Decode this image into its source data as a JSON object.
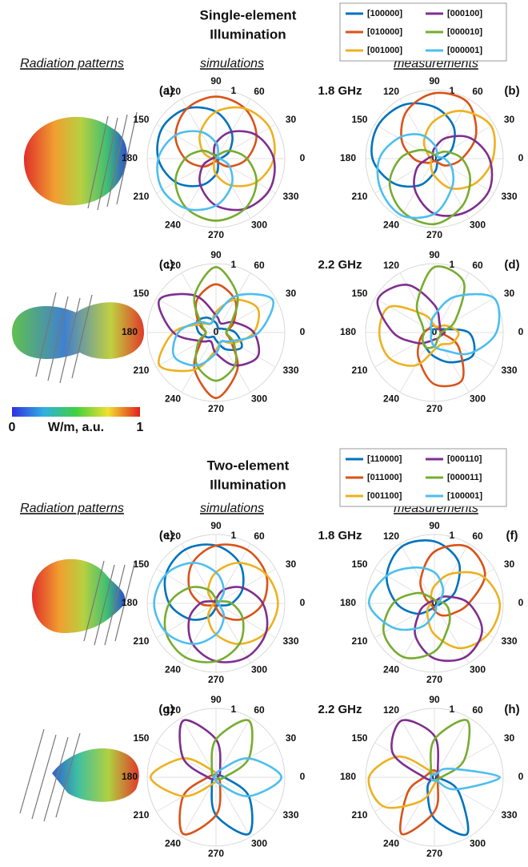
{
  "sections": [
    {
      "title": [
        "Single-element",
        "Illumination"
      ],
      "headings": [
        "Radiation patterns",
        "simulations",
        "measurements"
      ]
    },
    {
      "title": [
        "Two-element",
        "Illumination"
      ],
      "headings": [
        "Radiation patterns",
        "simulations",
        "measurements"
      ]
    }
  ],
  "colorbar": {
    "label": "W/m, a.u.",
    "ticks": [
      0,
      1
    ]
  },
  "chart_data": [
    {
      "type": "polar",
      "panel": "(a)",
      "frequency": "1.8 GHz",
      "theta": [
        0,
        30,
        60,
        90,
        120,
        150,
        180,
        210,
        240,
        270,
        300,
        330
      ],
      "rlim": [
        0,
        1
      ],
      "rticks": [
        0,
        1
      ],
      "series": [
        {
          "name": "[100000]",
          "color": "#0072bd",
          "values": [
            0.06,
            0.23,
            0.45,
            0.68,
            0.84,
            0.9,
            0.84,
            0.68,
            0.45,
            0.23,
            0.06,
            0.02
          ]
        },
        {
          "name": "[010000]",
          "color": "#d95319",
          "values": [
            0.45,
            0.68,
            0.84,
            0.9,
            0.84,
            0.68,
            0.45,
            0.23,
            0.06,
            0.02,
            0.06,
            0.23
          ]
        },
        {
          "name": "[001000]",
          "color": "#edb120",
          "values": [
            0.84,
            0.9,
            0.84,
            0.68,
            0.45,
            0.23,
            0.06,
            0.02,
            0.06,
            0.23,
            0.45,
            0.68
          ]
        },
        {
          "name": "[000100]",
          "color": "#7e2f8e",
          "values": [
            0.84,
            0.68,
            0.45,
            0.23,
            0.06,
            0.02,
            0.06,
            0.23,
            0.45,
            0.68,
            0.84,
            0.9
          ]
        },
        {
          "name": "[000010]",
          "color": "#77ac30",
          "values": [
            0.45,
            0.23,
            0.06,
            0.02,
            0.06,
            0.23,
            0.45,
            0.68,
            0.84,
            0.9,
            0.84,
            0.68
          ]
        },
        {
          "name": "[000001]",
          "color": "#4dbeee",
          "values": [
            0.06,
            0.02,
            0.06,
            0.23,
            0.45,
            0.68,
            0.84,
            0.9,
            0.84,
            0.68,
            0.45,
            0.23
          ]
        }
      ]
    },
    {
      "type": "polar",
      "panel": "(b)",
      "theta": [
        0,
        30,
        60,
        90,
        120,
        150,
        180,
        210,
        240,
        270,
        300,
        330
      ],
      "rlim": [
        0,
        1
      ],
      "rticks": [
        0,
        1
      ],
      "series": [
        {
          "name": "[100000]",
          "color": "#0072bd",
          "values": [
            0.1,
            0.3,
            0.55,
            0.75,
            0.9,
            0.95,
            0.9,
            0.7,
            0.45,
            0.2,
            0.08,
            0.05
          ]
        },
        {
          "name": "[010000]",
          "color": "#d95319",
          "values": [
            0.4,
            0.7,
            0.95,
            0.95,
            0.8,
            0.55,
            0.3,
            0.12,
            0.05,
            0.03,
            0.05,
            0.2
          ]
        },
        {
          "name": "[001000]",
          "color": "#edb120",
          "values": [
            0.85,
            0.95,
            0.8,
            0.55,
            0.3,
            0.1,
            0.05,
            0.05,
            0.1,
            0.25,
            0.5,
            0.7
          ]
        },
        {
          "name": "[000100]",
          "color": "#7e2f8e",
          "values": [
            0.8,
            0.6,
            0.35,
            0.15,
            0.05,
            0.05,
            0.1,
            0.3,
            0.55,
            0.8,
            0.9,
            0.92
          ]
        },
        {
          "name": "[000010]",
          "color": "#77ac30",
          "values": [
            0.4,
            0.2,
            0.08,
            0.05,
            0.1,
            0.25,
            0.5,
            0.75,
            0.9,
            0.95,
            0.8,
            0.6
          ]
        },
        {
          "name": "[000001]",
          "color": "#4dbeee",
          "values": [
            0.15,
            0.05,
            0.08,
            0.2,
            0.4,
            0.6,
            0.8,
            0.9,
            0.95,
            0.8,
            0.5,
            0.3
          ]
        }
      ]
    },
    {
      "type": "polar",
      "panel": "(c)",
      "frequency": "2.2 GHz",
      "theta": [
        0,
        30,
        60,
        90,
        120,
        150,
        180,
        210,
        240,
        270,
        300,
        330
      ],
      "rlim": [
        0,
        1
      ],
      "rticks": [
        0,
        1
      ],
      "series": [
        {
          "name": "[100000]",
          "color": "#0072bd",
          "values": [
            0.28,
            0.11,
            0.07,
            0.14,
            0.25,
            0.32,
            0.25,
            0.14,
            0.07,
            0.11,
            0.28,
            0.43
          ]
        },
        {
          "name": "[010000]",
          "color": "#d95319",
          "values": [
            0.15,
            0.3,
            0.55,
            0.7,
            0.55,
            0.3,
            0.15,
            0.25,
            0.62,
            0.95,
            0.62,
            0.25
          ]
        },
        {
          "name": "[001000]",
          "color": "#edb120",
          "values": [
            0.55,
            0.7,
            0.55,
            0.3,
            0.15,
            0.25,
            0.62,
            0.95,
            0.62,
            0.25,
            0.15,
            0.3
          ]
        },
        {
          "name": "[000100]",
          "color": "#7e2f8e",
          "values": [
            0.55,
            0.3,
            0.15,
            0.25,
            0.62,
            0.95,
            0.62,
            0.25,
            0.15,
            0.3,
            0.55,
            0.7
          ]
        },
        {
          "name": "[000010]",
          "color": "#77ac30",
          "values": [
            0.15,
            0.25,
            0.62,
            0.95,
            0.62,
            0.25,
            0.15,
            0.3,
            0.55,
            0.7,
            0.55,
            0.3
          ]
        },
        {
          "name": "[000001]",
          "color": "#4dbeee",
          "values": [
            0.62,
            0.95,
            0.62,
            0.25,
            0.15,
            0.3,
            0.55,
            0.7,
            0.55,
            0.3,
            0.15,
            0.25
          ]
        }
      ]
    },
    {
      "type": "polar",
      "panel": "(d)",
      "theta": [
        0,
        30,
        60,
        90,
        120,
        150,
        180,
        210,
        240,
        270,
        300,
        330
      ],
      "rlim": [
        0,
        1
      ],
      "rticks": [
        0,
        1
      ],
      "series": [
        {
          "name": "[100000]",
          "color": "#0072bd",
          "values": [
            0.5,
            0.1,
            0.05,
            0.05,
            0.05,
            0.1,
            0.15,
            0.2,
            0.25,
            0.35,
            0.5,
            0.65
          ]
        },
        {
          "name": "[010000]",
          "color": "#d95319",
          "values": [
            0.1,
            0.1,
            0.08,
            0.1,
            0.1,
            0.1,
            0.15,
            0.25,
            0.45,
            0.75,
            0.8,
            0.4
          ]
        },
        {
          "name": "[001000]",
          "color": "#edb120",
          "values": [
            0.35,
            0.2,
            0.1,
            0.1,
            0.3,
            0.75,
            0.8,
            0.75,
            0.55,
            0.25,
            0.2,
            0.3
          ]
        },
        {
          "name": "[000100]",
          "color": "#7e2f8e",
          "values": [
            0.15,
            0.1,
            0.15,
            0.4,
            0.8,
            0.95,
            0.6,
            0.3,
            0.15,
            0.1,
            0.1,
            0.1
          ]
        },
        {
          "name": "[000010]",
          "color": "#77ac30",
          "values": [
            0.1,
            0.35,
            0.85,
            0.95,
            0.5,
            0.2,
            0.15,
            0.2,
            0.25,
            0.2,
            0.1,
            0.1
          ]
        },
        {
          "name": "[000001]",
          "color": "#4dbeee",
          "values": [
            0.9,
            1.0,
            0.6,
            0.25,
            0.1,
            0.05,
            0.05,
            0.05,
            0.1,
            0.2,
            0.3,
            0.6
          ]
        }
      ]
    },
    {
      "type": "polar",
      "panel": "(e)",
      "frequency": "1.8 GHz",
      "theta": [
        0,
        30,
        60,
        90,
        120,
        150,
        180,
        210,
        240,
        270,
        300,
        330
      ],
      "rlim": [
        0,
        1
      ],
      "rticks": [
        0,
        1
      ],
      "series": [
        {
          "name": "[110000]",
          "color": "#0072bd",
          "values": [
            0.23,
            0.45,
            0.68,
            0.84,
            0.9,
            0.84,
            0.68,
            0.45,
            0.23,
            0.06,
            0.02,
            0.06
          ]
        },
        {
          "name": "[011000]",
          "color": "#d95319",
          "values": [
            0.68,
            0.84,
            0.9,
            0.84,
            0.68,
            0.45,
            0.23,
            0.06,
            0.02,
            0.06,
            0.23,
            0.45
          ]
        },
        {
          "name": "[001100]",
          "color": "#edb120",
          "values": [
            0.9,
            0.84,
            0.68,
            0.45,
            0.23,
            0.06,
            0.02,
            0.06,
            0.23,
            0.45,
            0.68,
            0.84
          ]
        },
        {
          "name": "[000110]",
          "color": "#7e2f8e",
          "values": [
            0.68,
            0.45,
            0.23,
            0.06,
            0.02,
            0.06,
            0.23,
            0.45,
            0.68,
            0.84,
            0.9,
            0.84
          ]
        },
        {
          "name": "[000011]",
          "color": "#77ac30",
          "values": [
            0.23,
            0.06,
            0.02,
            0.06,
            0.23,
            0.45,
            0.68,
            0.84,
            0.9,
            0.84,
            0.68,
            0.45
          ]
        },
        {
          "name": "[100001]",
          "color": "#4dbeee",
          "values": [
            0.02,
            0.06,
            0.23,
            0.45,
            0.68,
            0.84,
            0.9,
            0.84,
            0.68,
            0.45,
            0.23,
            0.06
          ]
        }
      ]
    },
    {
      "type": "polar",
      "panel": "(f)",
      "theta": [
        0,
        30,
        60,
        90,
        120,
        150,
        180,
        210,
        240,
        270,
        300,
        330
      ],
      "rlim": [
        0,
        1
      ],
      "rticks": [
        0,
        1
      ],
      "series": [
        {
          "name": "[110000]",
          "color": "#0072bd",
          "values": [
            0.1,
            0.35,
            0.7,
            0.9,
            0.95,
            0.8,
            0.55,
            0.3,
            0.1,
            0.05,
            0.05,
            0.05
          ]
        },
        {
          "name": "[011000]",
          "color": "#d95319",
          "values": [
            0.5,
            0.85,
            0.95,
            0.75,
            0.4,
            0.15,
            0.05,
            0.05,
            0.05,
            0.1,
            0.2,
            0.3
          ]
        },
        {
          "name": "[001100]",
          "color": "#edb120",
          "values": [
            0.95,
            0.8,
            0.5,
            0.25,
            0.1,
            0.05,
            0.05,
            0.1,
            0.2,
            0.45,
            0.75,
            0.9
          ]
        },
        {
          "name": "[000110]",
          "color": "#7e2f8e",
          "values": [
            0.5,
            0.2,
            0.05,
            0.05,
            0.05,
            0.05,
            0.1,
            0.25,
            0.55,
            0.8,
            0.9,
            0.8
          ]
        },
        {
          "name": "[000011]",
          "color": "#77ac30",
          "values": [
            0.15,
            0.05,
            0.05,
            0.05,
            0.1,
            0.3,
            0.6,
            0.85,
            0.9,
            0.7,
            0.4,
            0.25
          ]
        },
        {
          "name": "[100001]",
          "color": "#4dbeee",
          "values": [
            0.05,
            0.1,
            0.25,
            0.45,
            0.6,
            0.8,
            0.95,
            0.7,
            0.4,
            0.15,
            0.05,
            0.05
          ]
        }
      ]
    },
    {
      "type": "polar",
      "panel": "(g)",
      "frequency": "2.2 GHz",
      "theta": [
        0,
        30,
        60,
        90,
        120,
        150,
        180,
        210,
        240,
        270,
        300,
        330
      ],
      "rlim": [
        0,
        1
      ],
      "rticks": [
        0,
        1
      ],
      "series": [
        {
          "name": "[110000]",
          "color": "#0072bd",
          "values": [
            0.12,
            0.03,
            0.03,
            0.03,
            0.03,
            0.03,
            0.03,
            0.03,
            0.12,
            0.55,
            0.95,
            0.55
          ]
        },
        {
          "name": "[011000]",
          "color": "#d95319",
          "values": [
            0.03,
            0.03,
            0.03,
            0.03,
            0.03,
            0.03,
            0.12,
            0.55,
            0.95,
            0.55,
            0.12,
            0.03
          ]
        },
        {
          "name": "[001100]",
          "color": "#edb120",
          "values": [
            0.03,
            0.03,
            0.03,
            0.03,
            0.12,
            0.55,
            0.95,
            0.55,
            0.12,
            0.03,
            0.03,
            0.03
          ]
        },
        {
          "name": "[000110]",
          "color": "#7e2f8e",
          "values": [
            0.03,
            0.03,
            0.12,
            0.55,
            0.95,
            0.55,
            0.12,
            0.03,
            0.03,
            0.03,
            0.03,
            0.03
          ]
        },
        {
          "name": "[000011]",
          "color": "#77ac30",
          "values": [
            0.12,
            0.55,
            0.95,
            0.55,
            0.12,
            0.03,
            0.03,
            0.03,
            0.03,
            0.03,
            0.03,
            0.03
          ]
        },
        {
          "name": "[100001]",
          "color": "#4dbeee",
          "values": [
            0.95,
            0.55,
            0.12,
            0.03,
            0.03,
            0.03,
            0.03,
            0.03,
            0.03,
            0.03,
            0.12,
            0.55
          ]
        }
      ]
    },
    {
      "type": "polar",
      "panel": "(h)",
      "theta": [
        0,
        30,
        60,
        90,
        120,
        150,
        180,
        210,
        240,
        270,
        300,
        330
      ],
      "rlim": [
        0,
        1
      ],
      "rticks": [
        0,
        1
      ],
      "series": [
        {
          "name": "[110000]",
          "color": "#0072bd",
          "values": [
            0.05,
            0.05,
            0.05,
            0.05,
            0.05,
            0.05,
            0.05,
            0.05,
            0.2,
            0.6,
            0.95,
            0.4
          ]
        },
        {
          "name": "[011000]",
          "color": "#d95319",
          "values": [
            0.05,
            0.05,
            0.08,
            0.1,
            0.1,
            0.1,
            0.15,
            0.45,
            0.95,
            0.5,
            0.1,
            0.05
          ]
        },
        {
          "name": "[001100]",
          "color": "#edb120",
          "values": [
            0.08,
            0.05,
            0.05,
            0.05,
            0.1,
            0.6,
            0.95,
            0.85,
            0.4,
            0.1,
            0.05,
            0.05
          ]
        },
        {
          "name": "[000110]",
          "color": "#7e2f8e",
          "values": [
            0.05,
            0.05,
            0.1,
            0.6,
            0.95,
            0.7,
            0.15,
            0.05,
            0.05,
            0.05,
            0.05,
            0.05
          ]
        },
        {
          "name": "[000011]",
          "color": "#77ac30",
          "values": [
            0.1,
            0.5,
            0.95,
            0.55,
            0.1,
            0.05,
            0.05,
            0.05,
            0.05,
            0.05,
            0.05,
            0.05
          ]
        },
        {
          "name": "[100001]",
          "color": "#4dbeee",
          "values": [
            0.95,
            0.25,
            0.05,
            0.05,
            0.05,
            0.05,
            0.05,
            0.05,
            0.05,
            0.05,
            0.05,
            0.35
          ]
        }
      ]
    }
  ]
}
